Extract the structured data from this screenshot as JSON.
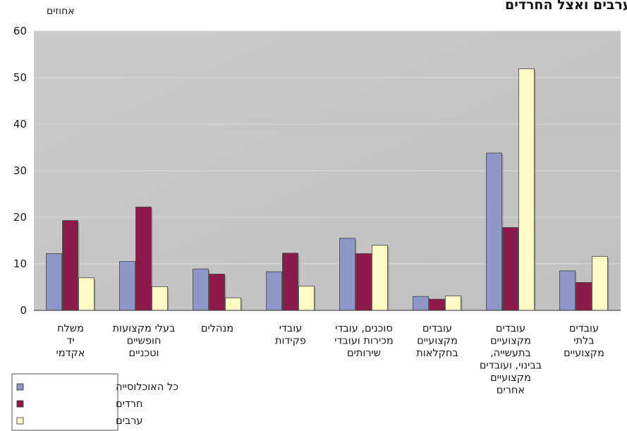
{
  "chart_data": {
    "type": "bar",
    "title": "באוכלוסייה הכללית, אצל הערבים ואצל החרדים",
    "ylabel": "אחוזים",
    "xlabel": "",
    "ylim": [
      0,
      60
    ],
    "yticks": [
      0,
      10,
      20,
      30,
      40,
      50,
      60
    ],
    "grid": true,
    "legend_position": "bottom-left",
    "categories": [
      [
        "משלח",
        "יד",
        "אקדמי"
      ],
      [
        "בעלי מקצועות",
        "חופשיים",
        "וטכניים"
      ],
      [
        "מנהלים"
      ],
      [
        "עובדי",
        "פקידות"
      ],
      [
        "סוכנים, עובדי",
        "מכירות ועובדי",
        "שירותים"
      ],
      [
        "עובדים",
        "מקצועיים",
        "בחקלאות"
      ],
      [
        "עובדים",
        "מקצועיים",
        "בתעשייה,",
        "בבינוי, ועובדים",
        "מקצועיים",
        "אחרים"
      ],
      [
        "עובדים",
        "בלתי",
        "מקצועיים"
      ]
    ],
    "series": [
      {
        "name": "כל האוכלוסייה",
        "color": "#8e95c7",
        "values": [
          12.2,
          10.5,
          8.9,
          8.3,
          15.5,
          3.0,
          33.8,
          8.5
        ]
      },
      {
        "name": "חרדים",
        "color": "#8b1a4a",
        "values": [
          19.3,
          22.2,
          7.8,
          12.3,
          12.2,
          2.4,
          17.8,
          6.0
        ]
      },
      {
        "name": "ערבים",
        "color": "#fffbc4",
        "values": [
          7.0,
          5.1,
          2.7,
          5.2,
          14.0,
          3.1,
          51.9,
          11.6
        ]
      }
    ]
  }
}
